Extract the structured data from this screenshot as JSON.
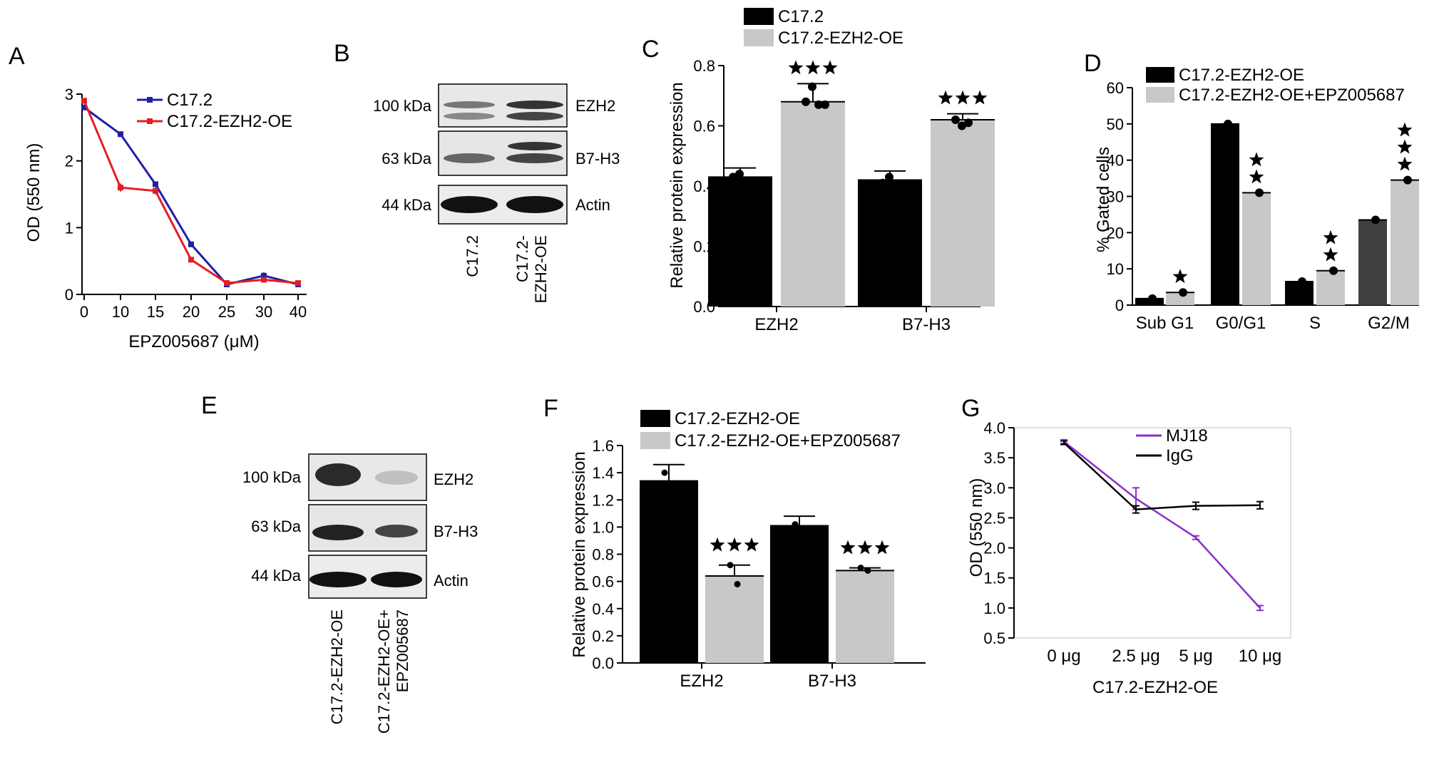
{
  "panels": {
    "A": {
      "letter": "A"
    },
    "B": {
      "letter": "B",
      "bands": [
        "EZH2",
        "B7-H3",
        "Actin"
      ],
      "sizes": [
        "100 kDa",
        "63 kDa",
        "44 kDa"
      ],
      "lanes": [
        "C17.2",
        "C17.2-",
        "EZH2-OE"
      ]
    },
    "C": {
      "letter": "C"
    },
    "D": {
      "letter": "D"
    },
    "E": {
      "letter": "E",
      "bands": [
        "EZH2",
        "B7-H3",
        "Actin"
      ],
      "sizes": [
        "100 kDa",
        "63 kDa",
        "44 kDa"
      ],
      "lanes": [
        "C17.2-EZH2-OE",
        "C17.2-EZH2-OE+",
        "EPZ005687"
      ]
    },
    "F": {
      "letter": "F"
    },
    "G": {
      "letter": "G"
    }
  },
  "colors": {
    "blue": "#1f1fa8",
    "red": "#e31e24",
    "black": "#000000",
    "gray": "#c8c8c8",
    "darkgray": "#404040",
    "purple": "#8b2fc9"
  },
  "chart_data": [
    {
      "id": "A",
      "type": "line",
      "x": [
        0,
        10,
        15,
        20,
        25,
        30,
        40
      ],
      "xticks": [
        "0",
        "10",
        "15",
        "20",
        "25",
        "30",
        "40"
      ],
      "xlabel": "EPZ005687 (μM)",
      "ylabel": "OD (550 nm)",
      "ylim": [
        0,
        3
      ],
      "yticks": [
        "0",
        "1",
        "2",
        "3"
      ],
      "legend_position": "top-right",
      "series": [
        {
          "name": "C17.2",
          "color": "#1f1fa8",
          "values": [
            2.8,
            2.4,
            1.65,
            0.75,
            0.15,
            0.28,
            0.15
          ],
          "errors": [
            0.03,
            0.02,
            0.03,
            0.02,
            0.02,
            0.05,
            0.02
          ]
        },
        {
          "name": "C17.2-EZH2-OE",
          "color": "#e31e24",
          "values": [
            2.9,
            1.6,
            1.55,
            0.52,
            0.17,
            0.22,
            0.17
          ],
          "errors": [
            0.03,
            0.06,
            0.05,
            0.02,
            0.02,
            0.03,
            0.02
          ]
        }
      ]
    },
    {
      "id": "C",
      "type": "bar",
      "categories": [
        "EZH2",
        "B7-H3"
      ],
      "ylabel": "Relative protein expression",
      "ylim": [
        0,
        0.8
      ],
      "yticks": [
        "0.0",
        "0.2",
        "0.4",
        "0.6",
        "0.8"
      ],
      "legend_position": "top",
      "series": [
        {
          "name": "C17.2",
          "color": "#000000",
          "values": [
            0.43,
            0.42
          ],
          "errors": [
            0.03,
            0.03
          ]
        },
        {
          "name": "C17.2-EZH2-OE",
          "color": "#c8c8c8",
          "values": [
            0.68,
            0.62
          ],
          "errors": [
            0.06,
            0.02
          ],
          "sig": [
            "★★★",
            "★★★"
          ]
        }
      ],
      "points": [
        [
          [
            0.43,
            0.44
          ],
          [
            0.68,
            0.73,
            0.67,
            0.67
          ]
        ],
        [
          [
            0.41,
            0.43
          ],
          [
            0.62,
            0.6,
            0.61
          ]
        ]
      ]
    },
    {
      "id": "D",
      "type": "bar",
      "categories": [
        "Sub G1",
        "G0/G1",
        "S",
        "G2/M"
      ],
      "ylabel": "% Gated cells",
      "ylim": [
        0,
        60
      ],
      "yticks": [
        "0",
        "10",
        "20",
        "30",
        "40",
        "50",
        "60"
      ],
      "legend_position": "top",
      "series": [
        {
          "name": "C17.2-EZH2-OE",
          "color": "#000000",
          "values": [
            1.8,
            50,
            6.5,
            23.5
          ]
        },
        {
          "name": "C17.2-EZH2-OE+EPZ005687",
          "color": "#c8c8c8",
          "values": [
            3.5,
            31,
            9.5,
            34.5
          ],
          "sig": [
            "★",
            "★★",
            "★★",
            "★★★"
          ]
        }
      ]
    },
    {
      "id": "F",
      "type": "bar",
      "categories": [
        "EZH2",
        "B7-H3"
      ],
      "ylabel": "Relative protein expression",
      "ylim": [
        0,
        1.6
      ],
      "yticks": [
        "0.0",
        "0.2",
        "0.4",
        "0.6",
        "0.8",
        "1.0",
        "1.2",
        "1.4",
        "1.6"
      ],
      "legend_position": "top",
      "series": [
        {
          "name": "C17.2-EZH2-OE",
          "color": "#000000",
          "values": [
            1.34,
            1.01
          ],
          "errors": [
            0.12,
            0.07
          ]
        },
        {
          "name": "C17.2-EZH2-OE+EPZ005687",
          "color": "#c8c8c8",
          "values": [
            0.64,
            0.68
          ],
          "errors": [
            0.08,
            0.02
          ],
          "sig": [
            "★★★",
            "★★★"
          ]
        }
      ],
      "points": [
        [
          [
            1.4
          ],
          [
            0.72,
            0.58
          ]
        ],
        [
          [
            1.02
          ],
          [
            0.7,
            0.68
          ]
        ]
      ]
    },
    {
      "id": "G",
      "type": "line",
      "categories": [
        "0 μg",
        "2.5 μg",
        "5 μg",
        "10 μg"
      ],
      "xlabel": "C17.2-EZH2-OE",
      "ylabel": "OD (550 nm)",
      "ylim": [
        0.5,
        4.0
      ],
      "yticks": [
        "0.5",
        "1.0",
        "1.5",
        "2.0",
        "2.5",
        "3.0",
        "3.5",
        "4.0"
      ],
      "legend_position": "top-right",
      "series": [
        {
          "name": "MJ18",
          "color": "#8b2fc9",
          "values": [
            3.77,
            2.82,
            2.17,
            1.0
          ],
          "errors": [
            0.03,
            0.18,
            0.03,
            0.04
          ]
        },
        {
          "name": "IgG",
          "color": "#000000",
          "values": [
            3.75,
            2.64,
            2.7,
            2.71
          ],
          "errors": [
            0.03,
            0.06,
            0.06,
            0.06
          ]
        }
      ]
    }
  ]
}
